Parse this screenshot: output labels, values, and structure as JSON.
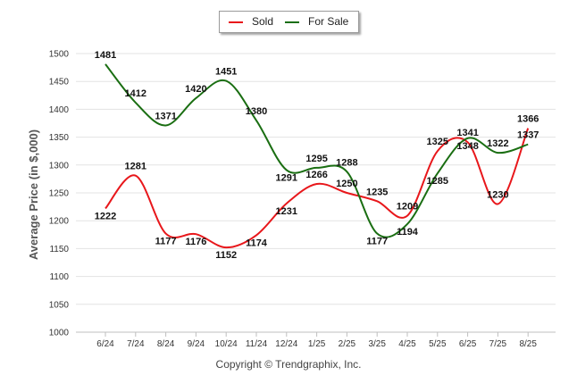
{
  "legend": {
    "sold_label": "Sold",
    "for_sale_label": "For Sale"
  },
  "footer": "Copyright © Trendgraphix, Inc.",
  "chart_data": {
    "type": "line",
    "title": "",
    "xlabel": "",
    "ylabel": "Average Price (in $,000)",
    "ylim": [
      1000,
      1500
    ],
    "yticks": [
      1000,
      1050,
      1100,
      1150,
      1200,
      1250,
      1300,
      1350,
      1400,
      1450,
      1500
    ],
    "grid": true,
    "legend_position": "top-center",
    "categories": [
      "6/24",
      "7/24",
      "8/24",
      "9/24",
      "10/24",
      "11/24",
      "12/24",
      "1/25",
      "2/25",
      "3/25",
      "4/25",
      "5/25",
      "6/25",
      "7/25",
      "8/25"
    ],
    "series": [
      {
        "name": "Sold",
        "color": "#e8171b",
        "values": [
          1222,
          1281,
          1177,
          1176,
          1152,
          1174,
          1231,
          1266,
          1250,
          1235,
          1209,
          1325,
          1341,
          1230,
          1366
        ]
      },
      {
        "name": "For Sale",
        "color": "#1a6e12",
        "values": [
          1481,
          1412,
          1371,
          1420,
          1451,
          1380,
          1291,
          1295,
          1288,
          1177,
          1194,
          1285,
          1348,
          1322,
          1337
        ]
      }
    ]
  }
}
